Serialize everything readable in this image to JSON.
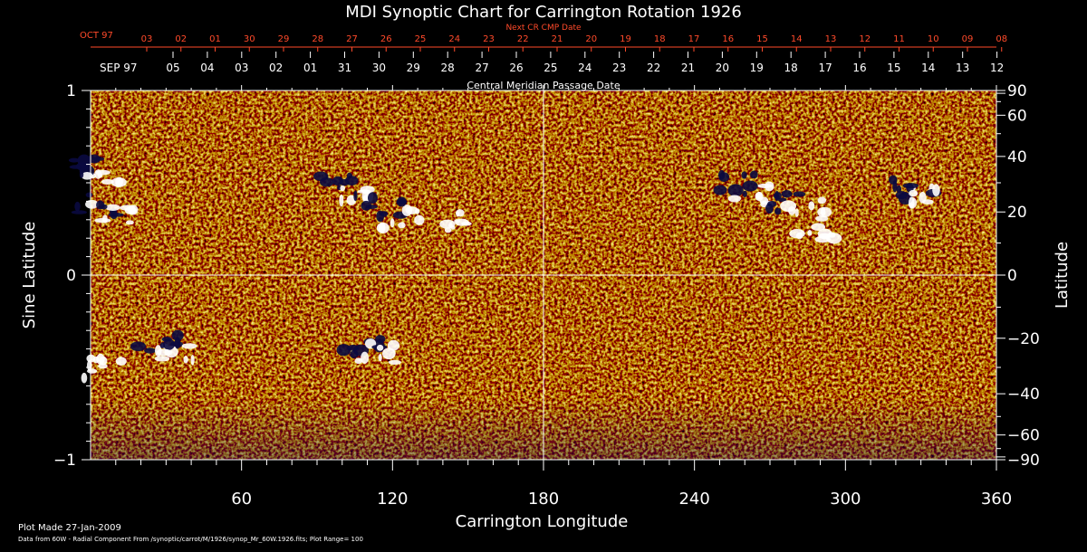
{
  "chart_data": {
    "type": "heatmap",
    "title": "MDI Synoptic Chart for Carrington Rotation 1926",
    "xlabel": "Carrington Longitude",
    "ylabel_left": "Sine Latitude",
    "ylabel_right": "Latitude",
    "xlim": [
      0,
      360
    ],
    "ylim_sine": [
      -1,
      1
    ],
    "x_ticks": [
      60,
      120,
      180,
      240,
      300,
      360
    ],
    "y_ticks_left": [
      "1",
      "0",
      "−1"
    ],
    "y_ticks_right": [
      "90",
      "60",
      "40",
      "20",
      "0",
      "−20",
      "−40",
      "−60",
      "−90"
    ],
    "gridlines": {
      "vertical_at_longitude": 180,
      "horizontal_at_sine_latitude": 0
    },
    "colormap": {
      "background": "#ff6a1a",
      "positive": "#ffffff",
      "negative": "#0a0a40"
    },
    "date_axes": {
      "next_rotation_label": "Next CR CMP Date",
      "next_rotation_month": "OCT 97",
      "next_rotation_days": [
        "03",
        "02",
        "01",
        "30",
        "29",
        "28",
        "27",
        "26",
        "25",
        "24",
        "23",
        "22",
        "21",
        "20",
        "19",
        "18",
        "17",
        "16",
        "15",
        "14",
        "13",
        "12",
        "11",
        "10",
        "09",
        "08"
      ],
      "cmp_label": "Central Meridian Passage Date",
      "cmp_month": "SEP 97",
      "cmp_days": [
        "05",
        "04",
        "03",
        "02",
        "01",
        "31",
        "30",
        "29",
        "28",
        "27",
        "26",
        "25",
        "24",
        "23",
        "22",
        "21",
        "20",
        "19",
        "18",
        "17",
        "16",
        "15",
        "14",
        "13",
        "12"
      ]
    },
    "active_regions": [
      {
        "lon": 5,
        "sinlat": 0.36,
        "polarity": "mixed"
      },
      {
        "lon": 3,
        "sinlat": 0.56,
        "polarity": "mixed"
      },
      {
        "lon": 100,
        "sinlat": 0.46,
        "polarity": "mixed"
      },
      {
        "lon": 120,
        "sinlat": 0.34,
        "polarity": "mixed"
      },
      {
        "lon": 140,
        "sinlat": 0.31,
        "polarity": "positive"
      },
      {
        "lon": 260,
        "sinlat": 0.47,
        "polarity": "mixed"
      },
      {
        "lon": 280,
        "sinlat": 0.38,
        "polarity": "mixed"
      },
      {
        "lon": 285,
        "sinlat": 0.24,
        "polarity": "positive"
      },
      {
        "lon": 330,
        "sinlat": 0.45,
        "polarity": "mixed"
      },
      {
        "lon": 30,
        "sinlat": -0.38,
        "polarity": "mixed"
      },
      {
        "lon": 110,
        "sinlat": -0.4,
        "polarity": "mixed"
      },
      {
        "lon": 1,
        "sinlat": -0.48,
        "polarity": "positive"
      }
    ]
  },
  "footer": {
    "plot_made": "Plot Made 27-Jan-2009",
    "data_source": "Data from 60W - Radial Component From /synoptic/carrot/M/1926/synop_Mr_60W.1926.fits; Plot Range= 100"
  }
}
